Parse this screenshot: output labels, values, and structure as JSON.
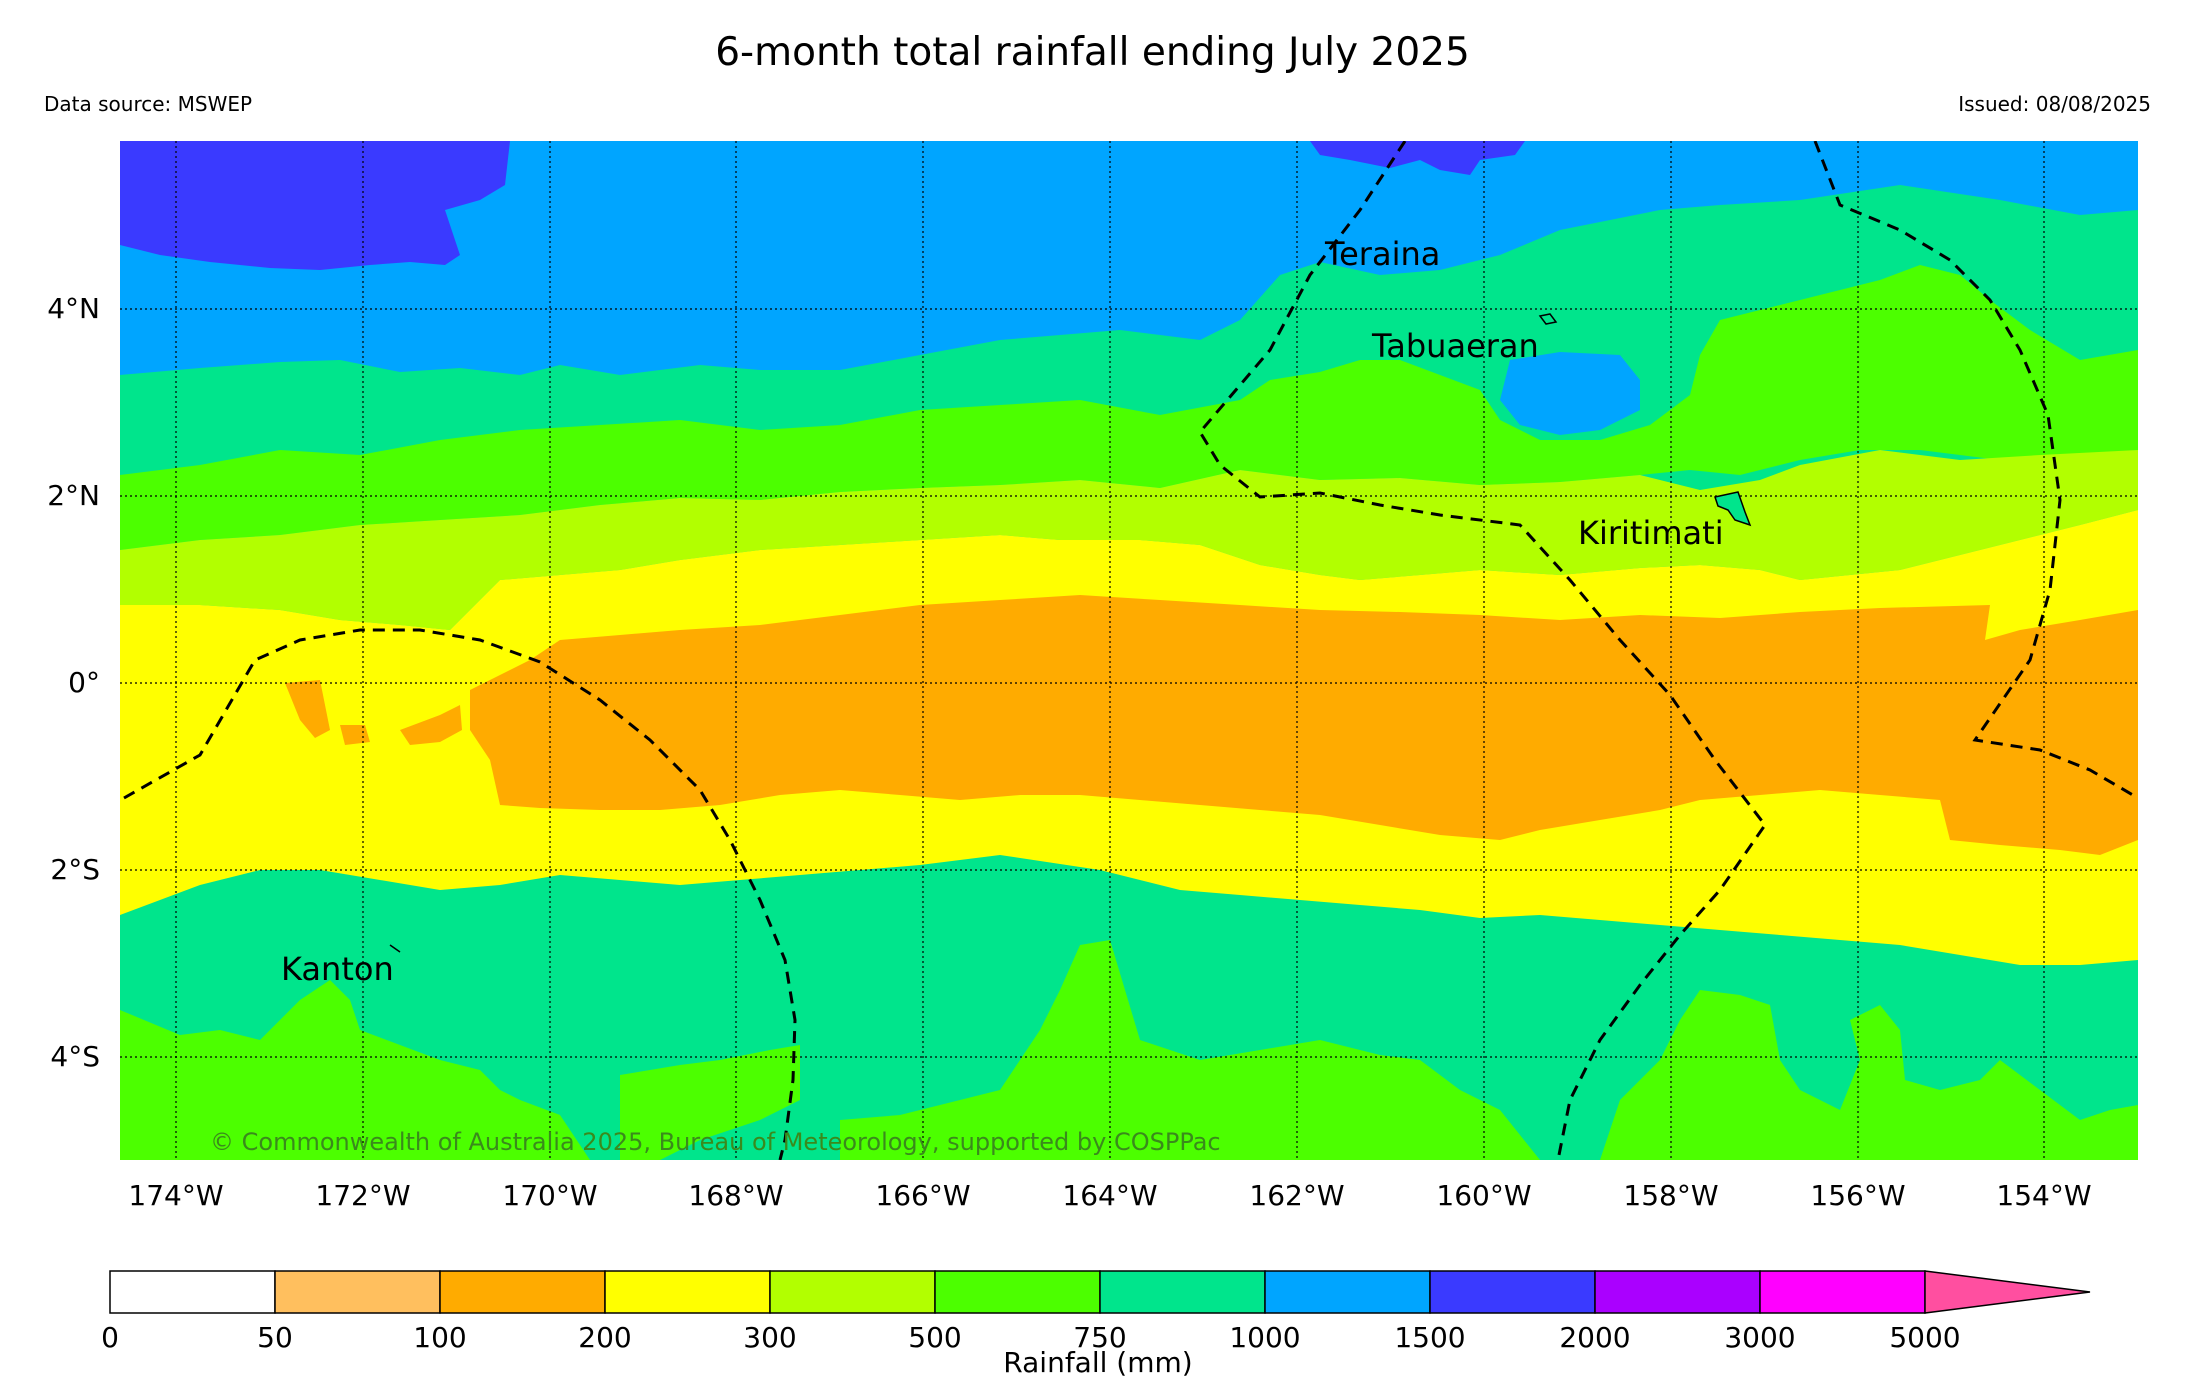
{
  "header": {
    "title": "6-month total rainfall ending July 2025",
    "data_source": "Data source: MSWEP",
    "issued": "Issued: 08/08/2025"
  },
  "map": {
    "lat_labels": [
      "4°N",
      "2°N",
      "0°",
      "2°S",
      "4°S"
    ],
    "lon_labels": [
      "174°W",
      "172°W",
      "170°W",
      "168°W",
      "166°W",
      "164°W",
      "162°W",
      "160°W",
      "158°W",
      "156°W",
      "154°W"
    ],
    "places": {
      "teraina": "Teraina",
      "tabuaeran": "Tabuaeran",
      "kiritimati": "Kiritimati",
      "kanton": "Kanton"
    },
    "copyright": "© Commonwealth of Australia 2025, Bureau of Meteorology, supported by COSPPac"
  },
  "colorbar": {
    "label": "Rainfall (mm)",
    "ticks": [
      "0",
      "50",
      "100",
      "200",
      "300",
      "500",
      "750",
      "1000",
      "1500",
      "2000",
      "3000",
      "5000"
    ],
    "colors": [
      "#ffffff",
      "#ffbf5e",
      "#ffab00",
      "#ffff00",
      "#b2ff00",
      "#4cff00",
      "#00e58c",
      "#00a5ff",
      "#3a3aff",
      "#aa00ff",
      "#ff00ff",
      "#ff4fa0"
    ]
  },
  "rain_colors": {
    "100-200": "#ffab00",
    "200-300": "#ffff00",
    "300-500": "#b2ff00",
    "500-750": "#4cff00",
    "750-1000": "#00e58c",
    "1000-1500": "#00a5ff",
    "1500-2000": "#3a3aff"
  }
}
